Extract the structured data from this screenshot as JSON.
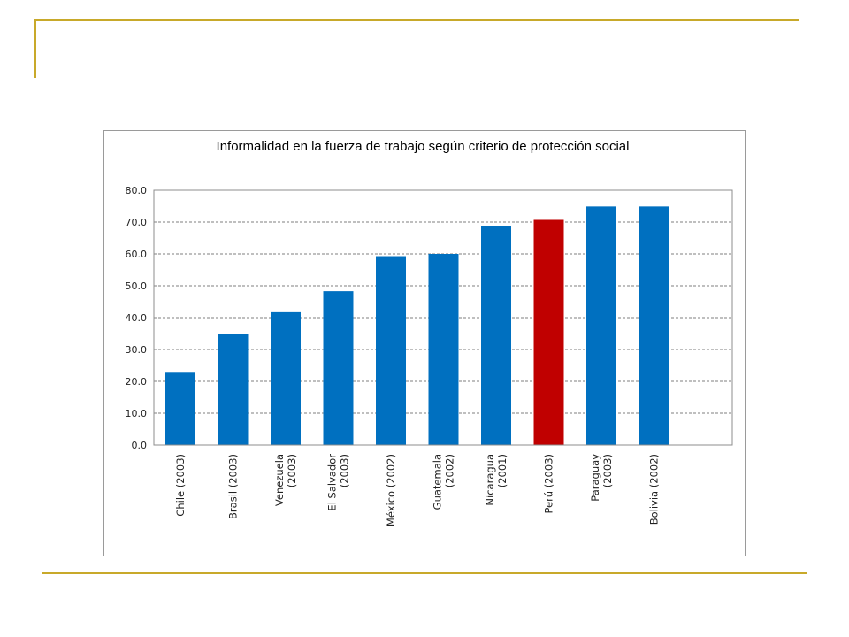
{
  "chart_data": {
    "type": "bar",
    "title": "Informalidad en la fuerza de trabajo según  criterio de protección social",
    "xlabel": "",
    "ylabel": "",
    "ylim": [
      0,
      80
    ],
    "yticks": [
      "0.0",
      "10.0",
      "20.0",
      "30.0",
      "40.0",
      "50.0",
      "60.0",
      "70.0",
      "80.0"
    ],
    "grid": true,
    "legend": "none",
    "categories": [
      [
        "Chile (2003)"
      ],
      [
        "Brasil (2003)"
      ],
      [
        "Venezuela",
        "(2003)"
      ],
      [
        "El Salvador",
        "(2003)"
      ],
      [
        "México (2002)"
      ],
      [
        "Guatemala",
        "(2002)"
      ],
      [
        "Nicaragua",
        "(2001)"
      ],
      [
        "Perú (2003)"
      ],
      [
        "Paraguay",
        "(2003)"
      ],
      [
        "Bolivia (2002)"
      ]
    ],
    "values": [
      22.7,
      35.0,
      41.7,
      48.3,
      59.3,
      60.0,
      68.7,
      70.7,
      74.9,
      74.9
    ],
    "bar_color": "#0070c0",
    "highlight_color": "#c00000",
    "highlight_index": 7
  }
}
